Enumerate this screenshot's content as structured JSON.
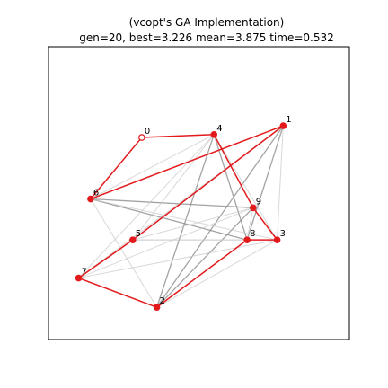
{
  "chart_data": {
    "type": "network",
    "title_line1": "(vcopt's GA Implementation)",
    "title_line2": "gen=20, best=3.226 mean=3.875 time=0.532",
    "xlim": [
      0,
      1
    ],
    "ylim": [
      0,
      1
    ],
    "grid": false,
    "start_node": 0,
    "nodes": [
      {
        "id": 0,
        "label": "0",
        "x": 0.31,
        "y": 0.69
      },
      {
        "id": 1,
        "label": "1",
        "x": 0.78,
        "y": 0.73
      },
      {
        "id": 2,
        "label": "2",
        "x": 0.36,
        "y": 0.11
      },
      {
        "id": 3,
        "label": "3",
        "x": 0.76,
        "y": 0.34
      },
      {
        "id": 4,
        "label": "4",
        "x": 0.55,
        "y": 0.7
      },
      {
        "id": 5,
        "label": "5",
        "x": 0.28,
        "y": 0.34
      },
      {
        "id": 6,
        "label": "6",
        "x": 0.14,
        "y": 0.48
      },
      {
        "id": 7,
        "label": "7",
        "x": 0.1,
        "y": 0.21
      },
      {
        "id": 8,
        "label": "8",
        "x": 0.66,
        "y": 0.34
      },
      {
        "id": 9,
        "label": "9",
        "x": 0.68,
        "y": 0.45
      }
    ],
    "best_route": [
      0,
      4,
      9,
      3,
      8,
      2,
      7,
      5,
      1,
      6,
      0
    ],
    "best_route_color": "#e31a1c",
    "node_color": "#e31a1c",
    "gray_edges": [
      {
        "from": 4,
        "to": 8,
        "shade": "dark"
      },
      {
        "from": 1,
        "to": 8,
        "shade": "dark"
      },
      {
        "from": 1,
        "to": 2,
        "shade": "dark"
      },
      {
        "from": 4,
        "to": 2,
        "shade": "dark"
      },
      {
        "from": 6,
        "to": 8,
        "shade": "dark"
      },
      {
        "from": 6,
        "to": 9,
        "shade": "dark"
      },
      {
        "from": 9,
        "to": 2,
        "shade": "dark"
      },
      {
        "from": 4,
        "to": 5,
        "shade": "light"
      },
      {
        "from": 4,
        "to": 6,
        "shade": "light"
      },
      {
        "from": 4,
        "to": 7,
        "shade": "light"
      },
      {
        "from": 4,
        "to": 3,
        "shade": "light"
      },
      {
        "from": 1,
        "to": 3,
        "shade": "light"
      },
      {
        "from": 1,
        "to": 7,
        "shade": "light"
      },
      {
        "from": 1,
        "to": 5,
        "shade": "light"
      },
      {
        "from": 5,
        "to": 9,
        "shade": "light"
      },
      {
        "from": 5,
        "to": 3,
        "shade": "light"
      },
      {
        "from": 5,
        "to": 8,
        "shade": "light"
      },
      {
        "from": 6,
        "to": 2,
        "shade": "light"
      },
      {
        "from": 7,
        "to": 9,
        "shade": "light"
      },
      {
        "from": 7,
        "to": 3,
        "shade": "light"
      },
      {
        "from": 3,
        "to": 2,
        "shade": "light"
      },
      {
        "from": 9,
        "to": 8,
        "shade": "light"
      },
      {
        "from": 6,
        "to": 3,
        "shade": "light"
      }
    ]
  }
}
